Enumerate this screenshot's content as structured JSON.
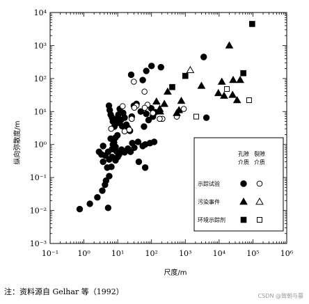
{
  "note": "注：资料源自 Gelhar 等（1992）",
  "watermark": "CSDN @致朝与暮",
  "chart_data": {
    "type": "scatter",
    "title": "",
    "xlabel": "尺度/m",
    "ylabel": "纵向弥散度/m",
    "x_scale": "log",
    "y_scale": "log",
    "xlim": [
      0.1,
      1000000
    ],
    "ylim": [
      0.001,
      10000
    ],
    "x_tick_labels": [
      "10⁻¹",
      "10⁰",
      "10¹",
      "10²",
      "10³",
      "10⁴",
      "10⁵",
      "10⁶"
    ],
    "y_tick_labels": [
      "10⁻³",
      "10⁻²",
      "10⁻¹",
      "10⁰",
      "10¹",
      "10²",
      "10³",
      "10⁴"
    ],
    "grid": false,
    "legend": {
      "placement": "right-middle",
      "col_headers": [
        [
          "孔隙",
          "介质"
        ],
        [
          "裂隙",
          "介质"
        ]
      ],
      "rows": [
        "示踪试验",
        "污染事件",
        "环境示踪剂"
      ]
    },
    "series": [
      {
        "name": "示踪试验（孔隙介质）",
        "marker": "filled-circle",
        "points": [
          [
            0.75,
            0.011
          ],
          [
            1.5,
            0.016
          ],
          [
            2.5,
            0.025
          ],
          [
            3.5,
            0.04
          ],
          [
            4.2,
            0.06
          ],
          [
            4.5,
            0.08
          ],
          [
            5.2,
            0.012
          ],
          [
            5.6,
            0.11
          ],
          [
            6.5,
            0.21
          ],
          [
            8.6,
            0.33
          ],
          [
            6.8,
            0.72
          ],
          [
            6.8,
            0.42
          ],
          [
            2.8,
            0.6
          ],
          [
            3.3,
            0.5
          ],
          [
            3.7,
            0.9
          ],
          [
            3.7,
            0.3
          ],
          [
            4.3,
            0.46
          ],
          [
            4.9,
            0.2
          ],
          [
            5.2,
            0.6
          ],
          [
            5.6,
            0.35
          ],
          [
            6.2,
            1.5
          ],
          [
            7.2,
            1.0
          ],
          [
            7.8,
            1.15
          ],
          [
            8.6,
            0.85
          ],
          [
            9.2,
            0.62
          ],
          [
            10,
            0.42
          ],
          [
            11,
            0.5
          ],
          [
            13,
            0.7
          ],
          [
            16,
            0.58
          ],
          [
            20,
            0.75
          ],
          [
            24,
            0.6
          ],
          [
            27,
            1.1
          ],
          [
            31,
            0.8
          ],
          [
            40,
            1.2
          ],
          [
            55,
            0.9
          ],
          [
            65,
            1.0
          ],
          [
            90,
            1.1
          ],
          [
            120,
            1.2
          ],
          [
            42,
            0.3
          ],
          [
            65,
            0.2
          ],
          [
            5.5,
            15
          ],
          [
            5.8,
            11
          ],
          [
            6.2,
            8
          ],
          [
            6.8,
            6.5
          ],
          [
            7.2,
            5
          ],
          [
            8,
            3.5
          ],
          [
            9,
            6
          ],
          [
            10,
            4.5
          ],
          [
            10.5,
            8
          ],
          [
            11.5,
            12
          ],
          [
            12.5,
            5.5
          ],
          [
            13.5,
            3.6
          ],
          [
            14.5,
            9
          ],
          [
            16,
            6.5
          ],
          [
            18,
            4
          ],
          [
            20,
            3.2
          ],
          [
            23,
            2.6
          ],
          [
            26,
            7
          ],
          [
            30,
            15
          ],
          [
            36,
            17
          ],
          [
            48,
            10
          ],
          [
            60,
            3.5
          ],
          [
            70,
            8.5
          ],
          [
            82,
            5.5
          ],
          [
            98,
            12.5
          ],
          [
            110,
            7
          ],
          [
            130,
            9.5
          ],
          [
            25,
            130
          ],
          [
            55,
            90
          ],
          [
            70,
            170
          ],
          [
            100,
            240
          ],
          [
            190,
            220
          ],
          [
            3500,
            450
          ],
          [
            4200,
            6.5
          ],
          [
            8.5,
            1.6
          ],
          [
            9.8,
            1.9
          ]
        ]
      },
      {
        "name": "示踪试验（裂隙介质）",
        "marker": "open-circle",
        "points": [
          [
            30,
            80
          ],
          [
            62,
            40
          ],
          [
            76,
            16
          ],
          [
            36,
            15
          ],
          [
            26,
            6
          ],
          [
            63,
            13
          ],
          [
            110,
            9
          ],
          [
            210,
            6
          ],
          [
            900,
            12
          ],
          [
            560,
            7
          ],
          [
            6.4,
            3
          ],
          [
            14,
            14.5
          ],
          [
            31,
            13
          ],
          [
            16,
            2.5
          ],
          [
            22,
            2.8
          ],
          [
            175,
            6
          ]
        ]
      },
      {
        "name": "污染事件（孔隙介质）",
        "marker": "filled-triangle",
        "points": [
          [
            140,
            20
          ],
          [
            175,
            12
          ],
          [
            240,
            17
          ],
          [
            300,
            40
          ],
          [
            560,
            9
          ],
          [
            650,
            11
          ],
          [
            760,
            21
          ],
          [
            3000,
            60
          ],
          [
            9500,
            36
          ],
          [
            12000,
            80
          ],
          [
            14000,
            30
          ],
          [
            20000,
            1000
          ],
          [
            25000,
            32
          ],
          [
            34000,
            22
          ],
          [
            42000,
            90
          ],
          [
            26000,
            90
          ],
          [
            180,
            10
          ]
        ]
      },
      {
        "name": "污染事件（裂隙介质）",
        "marker": "open-triangle",
        "points": [
          [
            1400,
            180
          ]
        ]
      },
      {
        "name": "环境示踪剂（孔隙介质）",
        "marker": "filled-square",
        "points": [
          [
            410,
            55
          ],
          [
            1000,
            120
          ],
          [
            52000,
            145
          ],
          [
            95000,
            4500
          ]
        ]
      },
      {
        "name": "环境示踪剂（裂隙介质）",
        "marker": "open-square",
        "points": [
          [
            2100,
            7
          ],
          [
            77000,
            22
          ],
          [
            17000,
            48
          ]
        ]
      }
    ]
  }
}
